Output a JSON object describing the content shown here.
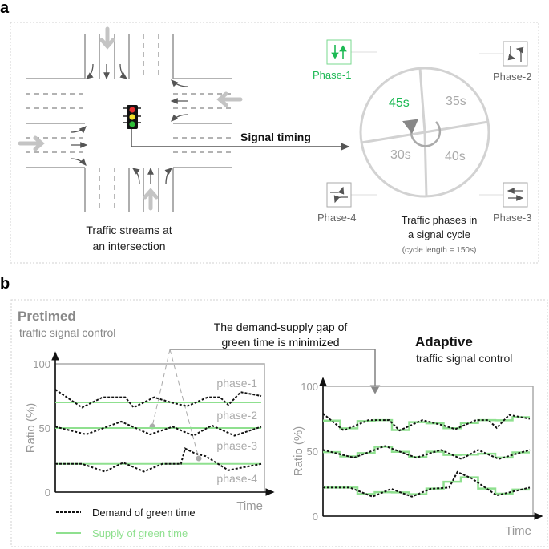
{
  "panel_a": {
    "label": "a",
    "intersection_caption": [
      "Traffic streams at",
      "an intersection"
    ],
    "signal_timing_label": "Signal timing",
    "phases": [
      {
        "label": "Phase-1",
        "duration": "45s",
        "active": true,
        "icon": "north-south-through-icon"
      },
      {
        "label": "Phase-2",
        "duration": "35s",
        "active": false,
        "icon": "north-south-left-turn-icon"
      },
      {
        "label": "Phase-3",
        "duration": "40s",
        "active": false,
        "icon": "east-west-through-icon"
      },
      {
        "label": "Phase-4",
        "duration": "30s",
        "active": false,
        "icon": "east-west-left-turn-icon"
      }
    ],
    "cycle_caption": [
      "Traffic phases in",
      "a signal cycle"
    ],
    "cycle_length": "(cycle length = 150s)"
  },
  "panel_b": {
    "label": "b",
    "callout": [
      "The demand-supply gap of",
      "green time is minimized"
    ],
    "pretimed": {
      "title": "Pretimed",
      "subtitle": "traffic signal control"
    },
    "adaptive": {
      "title": "Adaptive",
      "subtitle": "traffic signal control"
    },
    "legend": {
      "demand": "Demand of green time",
      "supply": "Supply of green time"
    }
  },
  "colors": {
    "active_green": "#1db954",
    "supply_green": "#8fe08f",
    "gray": "#9a9a9a",
    "demand": "#111111"
  },
  "chart_data": [
    {
      "type": "line",
      "name": "pretimed",
      "ylabel": "Ratio (%)",
      "xlabel": "Time",
      "ylim": [
        0,
        100
      ],
      "yticks": [
        "0",
        "50",
        "100"
      ],
      "phase_labels": [
        "phase-1",
        "phase-2",
        "phase-3",
        "phase-4"
      ],
      "demand": [
        {
          "x": [
            0,
            13,
            23,
            34,
            38,
            48,
            56,
            64,
            74,
            80,
            84,
            90,
            100
          ],
          "y": [
            80,
            66,
            74,
            74,
            66,
            74,
            70,
            67,
            74,
            74,
            68,
            78,
            75
          ]
        },
        {
          "x": [
            0,
            15,
            32,
            46,
            57,
            67,
            76,
            87,
            100
          ],
          "y": [
            51,
            45,
            55,
            45,
            51,
            44,
            52,
            44,
            51
          ]
        },
        {
          "x": [
            0,
            13,
            24,
            33,
            43,
            52,
            61,
            63,
            68,
            73,
            84,
            100
          ],
          "y": [
            22,
            22,
            16,
            23,
            16,
            22,
            22,
            34,
            30,
            28,
            17,
            22
          ]
        }
      ],
      "supply": [
        70,
        50,
        22
      ]
    },
    {
      "type": "line",
      "name": "adaptive",
      "ylabel": "Ratio (%)",
      "xlabel": "Time",
      "ylim": [
        0,
        100
      ],
      "yticks": [
        "0",
        "50",
        "100"
      ],
      "demand": [
        {
          "x": [
            0,
            10,
            22,
            32,
            37,
            48,
            58,
            64,
            74,
            80,
            84,
            90,
            100
          ],
          "y": [
            79,
            66,
            74,
            74,
            66,
            74,
            70,
            67,
            74,
            74,
            68,
            78,
            75
          ]
        },
        {
          "x": [
            0,
            15,
            30,
            45,
            57,
            67,
            75,
            85,
            100
          ],
          "y": [
            51,
            45,
            54,
            45,
            51,
            44,
            51,
            44,
            51
          ]
        },
        {
          "x": [
            0,
            13,
            24,
            33,
            43,
            52,
            61,
            65,
            72,
            84,
            100
          ],
          "y": [
            22,
            22,
            15,
            21,
            15,
            21,
            22,
            34,
            29,
            16,
            22
          ]
        }
      ],
      "supply": "step-follows-demand"
    }
  ]
}
